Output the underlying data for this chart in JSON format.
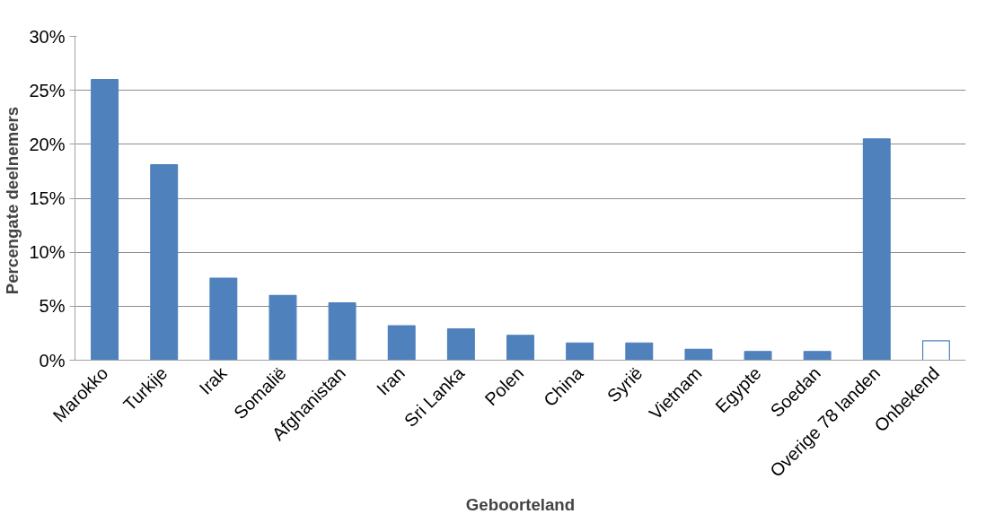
{
  "chart_data": {
    "type": "bar",
    "xlabel": "Geboorteland",
    "ylabel": "Percengate  deelnemers",
    "categories": [
      "Marokko",
      "Turkije",
      "Irak",
      "Somalië",
      "Afghanistan",
      "Iran",
      "Sri Lanka",
      "Polen",
      "China",
      "Syrië",
      "Vietnam",
      "Egypte",
      "Soedan",
      "Overige 78 landen",
      "Onbekend"
    ],
    "values": [
      26.0,
      18.1,
      7.6,
      6.0,
      5.3,
      3.2,
      2.9,
      2.3,
      1.6,
      1.6,
      1.0,
      0.8,
      0.8,
      20.5,
      1.8
    ],
    "colors": [
      "#4f81bd",
      "#4f81bd",
      "#4f81bd",
      "#4f81bd",
      "#4f81bd",
      "#4f81bd",
      "#4f81bd",
      "#4f81bd",
      "#4f81bd",
      "#4f81bd",
      "#4f81bd",
      "#4f81bd",
      "#4f81bd",
      "#4f81bd",
      "#ffffff"
    ],
    "ylim": [
      0,
      30
    ],
    "yticks": [
      {
        "value": 0,
        "label": "0%"
      },
      {
        "value": 5,
        "label": "5%"
      },
      {
        "value": 10,
        "label": "10%"
      },
      {
        "value": 15,
        "label": "15%"
      },
      {
        "value": 20,
        "label": "20%"
      },
      {
        "value": 25,
        "label": "25%"
      },
      {
        "value": 30,
        "label": "30%"
      }
    ],
    "grid": "y"
  }
}
